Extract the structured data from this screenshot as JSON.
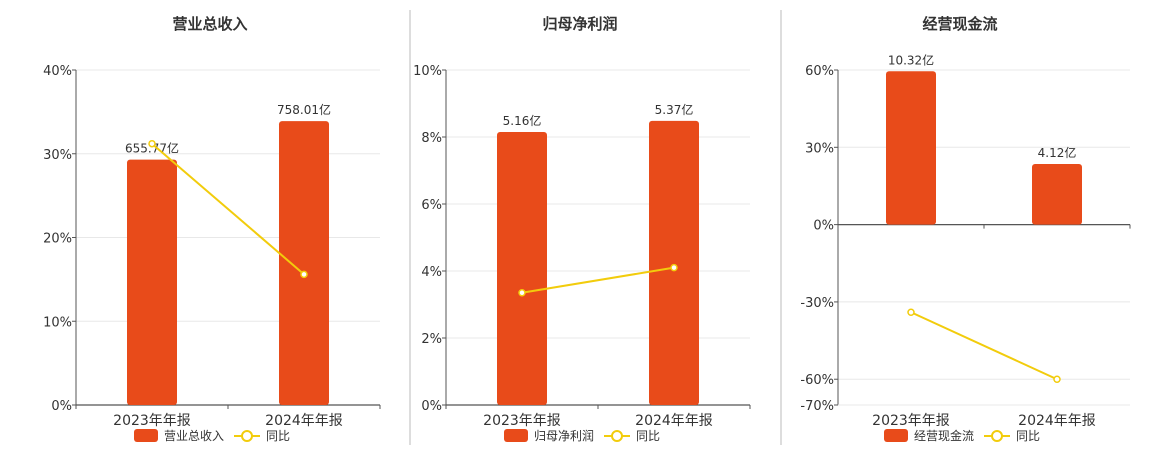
{
  "colors": {
    "bar": "#E84B1A",
    "line": "#F2CC0C",
    "grid": "#E8E8E8",
    "axis": "#555555",
    "divider": "#BBBBBB"
  },
  "legend_labels": {
    "line": "同比"
  },
  "chart_data": [
    {
      "type": "bar",
      "title": "营业总收入",
      "categories": [
        "2023年年报",
        "2024年年报"
      ],
      "ylim": [
        0,
        40
      ],
      "yticks": [
        "0%",
        "10%",
        "20%",
        "30%",
        "40%"
      ],
      "ytick_values": [
        0,
        10,
        20,
        30,
        40
      ],
      "series": [
        {
          "name": "营业总收入",
          "type": "bar",
          "values": [
            29.3,
            33.9
          ],
          "value_labels": [
            "655.77亿",
            "758.01亿"
          ]
        },
        {
          "name": "同比",
          "type": "line",
          "values": [
            31.2,
            15.6
          ]
        }
      ],
      "grid": true,
      "legend": "bottom"
    },
    {
      "type": "bar",
      "title": "归母净利润",
      "categories": [
        "2023年年报",
        "2024年年报"
      ],
      "ylim": [
        0,
        10
      ],
      "yticks": [
        "0%",
        "2%",
        "4%",
        "6%",
        "8%",
        "10%"
      ],
      "ytick_values": [
        0,
        2,
        4,
        6,
        8,
        10
      ],
      "series": [
        {
          "name": "归母净利润",
          "type": "bar",
          "values": [
            8.15,
            8.48
          ],
          "value_labels": [
            "5.16亿",
            "5.37亿"
          ]
        },
        {
          "name": "同比",
          "type": "line",
          "values": [
            3.35,
            4.1
          ]
        }
      ],
      "grid": true,
      "legend": "bottom"
    },
    {
      "type": "bar",
      "title": "经营现金流",
      "categories": [
        "2023年年报",
        "2024年年报"
      ],
      "ylim": [
        -70,
        60
      ],
      "yticks": [
        "-70%",
        "-60%",
        "-30%",
        "0%",
        "30%",
        "60%"
      ],
      "ytick_values": [
        -70,
        -60,
        -30,
        0,
        30,
        60
      ],
      "series": [
        {
          "name": "经营现金流",
          "type": "bar",
          "values": [
            59.5,
            23.5
          ],
          "value_labels": [
            "10.32亿",
            "4.12亿"
          ]
        },
        {
          "name": "同比",
          "type": "line",
          "values": [
            -34,
            -60
          ]
        }
      ],
      "grid": true,
      "legend": "bottom"
    }
  ]
}
